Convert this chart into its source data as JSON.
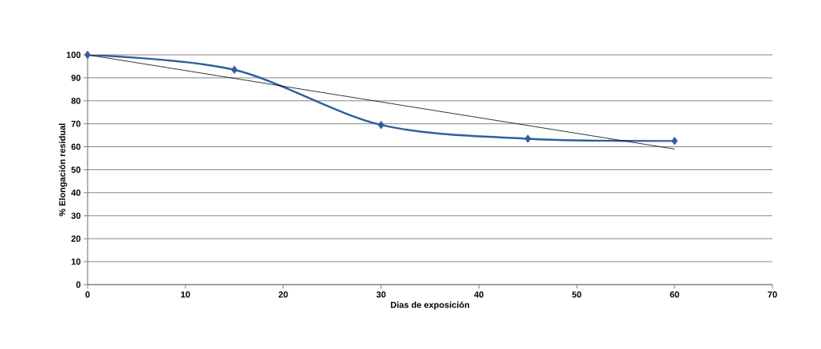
{
  "chart_data": {
    "type": "line",
    "xlabel": "Dias  de exposición",
    "ylabel": "% Elongación residual",
    "x": [
      0,
      15,
      30,
      45,
      60
    ],
    "series": [
      {
        "color": "#2e5f9e",
        "values": [
          100,
          93.5,
          69.5,
          63.5,
          62.5
        ],
        "marker": "diamond",
        "line_style": "solid"
      },
      {
        "type": "line",
        "color": "#000000",
        "x": [
          0,
          60
        ],
        "values": [
          100,
          59
        ],
        "marker": "none",
        "line_style": "solid"
      }
    ],
    "xlim": [
      0,
      70
    ],
    "ylim": [
      0,
      100
    ],
    "xticks": [
      0,
      10,
      20,
      30,
      40,
      50,
      60,
      70
    ],
    "yticks": [
      0,
      10,
      20,
      30,
      40,
      50,
      60,
      70,
      80,
      90,
      100
    ],
    "grid": "y"
  }
}
